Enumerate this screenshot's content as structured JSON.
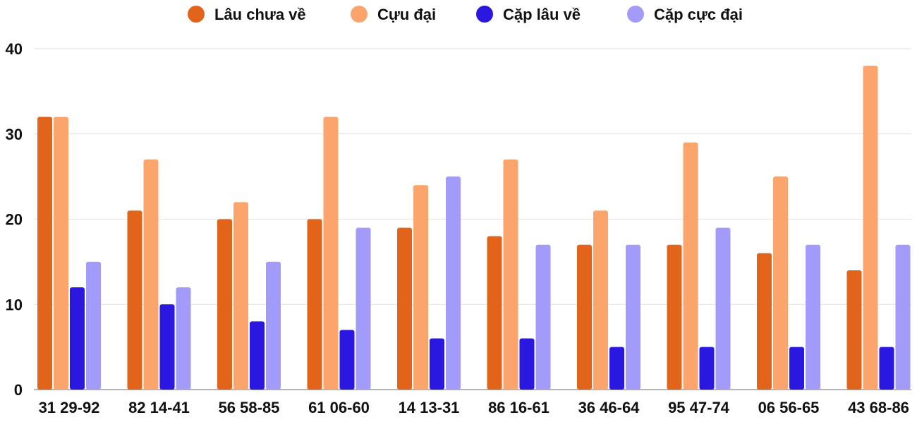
{
  "chart_data": {
    "type": "bar",
    "title": "",
    "xlabel": "",
    "ylabel": "",
    "ylim": [
      0,
      40
    ],
    "yticks": [
      0,
      10,
      20,
      30,
      40
    ],
    "grid": true,
    "legend_position": "top-center",
    "categories": [
      "31 29-92",
      "82 14-41",
      "56 58-85",
      "61 06-60",
      "14 13-31",
      "86 16-61",
      "36 46-64",
      "95 47-74",
      "06 56-65",
      "43 68-86"
    ],
    "series": [
      {
        "name": "Lâu chưa về",
        "color": "#e2641a",
        "values": [
          32,
          21,
          20,
          20,
          19,
          18,
          17,
          17,
          16,
          14
        ]
      },
      {
        "name": "Cựu đại",
        "color": "#fba46c",
        "values": [
          32,
          27,
          22,
          32,
          24,
          27,
          21,
          29,
          25,
          38
        ]
      },
      {
        "name": "Cặp lâu về",
        "color": "#2a17e0",
        "values": [
          12,
          10,
          8,
          7,
          6,
          6,
          5,
          5,
          5,
          5
        ]
      },
      {
        "name": "Cặp cực đại",
        "color": "#a29bfa",
        "values": [
          15,
          12,
          15,
          19,
          25,
          17,
          17,
          19,
          17,
          17
        ]
      }
    ]
  }
}
